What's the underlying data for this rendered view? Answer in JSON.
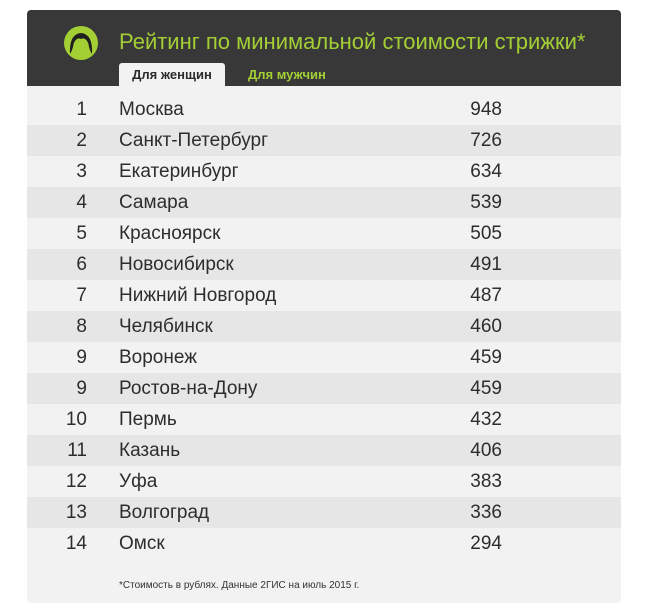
{
  "header": {
    "title": "Рейтинг по минимальной стоимости стрижки*",
    "logo_icon": "woman-face-icon",
    "accent_color": "#a3cf35",
    "tabs": [
      {
        "label": "Для женщин",
        "active": true
      },
      {
        "label": "Для мужчин",
        "active": false
      }
    ]
  },
  "rows": [
    {
      "rank": "1",
      "city": "Москва",
      "price": "948"
    },
    {
      "rank": "2",
      "city": "Санкт-Петербург",
      "price": "726"
    },
    {
      "rank": "3",
      "city": "Екатеринбург",
      "price": "634"
    },
    {
      "rank": "4",
      "city": "Самара",
      "price": "539"
    },
    {
      "rank": "5",
      "city": "Красноярск",
      "price": "505"
    },
    {
      "rank": "6",
      "city": "Новосибирск",
      "price": "491"
    },
    {
      "rank": "7",
      "city": "Нижний Новгород",
      "price": "487"
    },
    {
      "rank": "8",
      "city": "Челябинск",
      "price": "460"
    },
    {
      "rank": "9",
      "city": "Воронеж",
      "price": "459"
    },
    {
      "rank": "9",
      "city": "Ростов-на-Дону",
      "price": "459"
    },
    {
      "rank": "10",
      "city": "Пермь",
      "price": "432"
    },
    {
      "rank": "11",
      "city": "Казань",
      "price": "406"
    },
    {
      "rank": "12",
      "city": "Уфа",
      "price": "383"
    },
    {
      "rank": "13",
      "city": "Волгоград",
      "price": "336"
    },
    {
      "rank": "14",
      "city": "Омск",
      "price": "294"
    }
  ],
  "footnote": "*Стоимость в рублях. Данные 2ГИС на июль 2015 г."
}
